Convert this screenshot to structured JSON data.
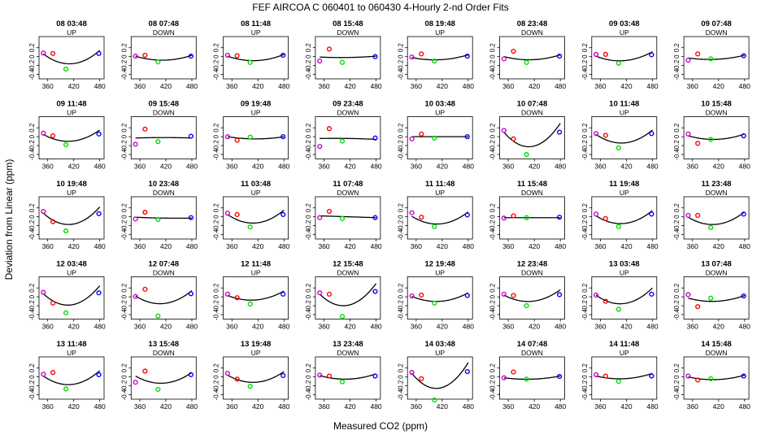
{
  "title": "FEF   AIRCOA C   060401 to 060430   4-Hourly 2-nd Order Fits",
  "xlabel": "Measured CO2 (ppm)",
  "ylabel": "Deviation from Linear (ppm)",
  "colors": {
    "curve": "#000000",
    "point_purple": "#cc00cc",
    "point_red": "#ff0000",
    "point_green": "#00dd00",
    "point_blue": "#0000ff"
  },
  "chart_data": {
    "type": "scatter",
    "layout": {
      "rows": 5,
      "cols": 8
    },
    "xlim": [
      340,
      490
    ],
    "ylim": [
      -0.5,
      0.45
    ],
    "xticks": [
      360,
      420,
      480
    ],
    "yticks": [
      -0.4,
      -0.2,
      0,
      0.2
    ],
    "point_x": [
      350,
      372,
      402,
      478
    ],
    "point_colors": [
      "#cc00cc",
      "#ff0000",
      "#00dd00",
      "#0000ff"
    ],
    "panels": [
      {
        "title": "08 03:48",
        "mode": "UP",
        "fit": [
          0.1,
          -0.26,
          0.04
        ],
        "points": [
          0.08,
          0.07,
          -0.28,
          0.07
        ]
      },
      {
        "title": "08 07:48",
        "mode": "DOWN",
        "fit": [
          0.02,
          -0.1,
          0.01
        ],
        "points": [
          0.01,
          0.03,
          -0.12,
          0.01
        ]
      },
      {
        "title": "08 11:48",
        "mode": "UP",
        "fit": [
          0.03,
          -0.12,
          0.02
        ],
        "points": [
          0.03,
          0.02,
          -0.13,
          0.03
        ]
      },
      {
        "title": "08 15:48",
        "mode": "DOWN",
        "fit": [
          0.0,
          -0.02,
          0.01
        ],
        "points": [
          -0.1,
          0.17,
          -0.13,
          0.0
        ]
      },
      {
        "title": "08 19:48",
        "mode": "UP",
        "fit": [
          0.01,
          -0.08,
          0.03
        ],
        "points": [
          -0.01,
          0.06,
          -0.1,
          0.01
        ]
      },
      {
        "title": "08 23:48",
        "mode": "DOWN",
        "fit": [
          0.02,
          -0.09,
          0.02
        ],
        "points": [
          -0.05,
          0.12,
          -0.13,
          0.01
        ]
      },
      {
        "title": "09 03:48",
        "mode": "UP",
        "fit": [
          0.06,
          -0.15,
          0.05
        ],
        "points": [
          0.05,
          0.05,
          -0.15,
          0.04
        ]
      },
      {
        "title": "09 07:48",
        "mode": "DOWN",
        "fit": [
          0.0,
          -0.06,
          0.03
        ],
        "points": [
          -0.08,
          0.06,
          -0.05,
          0.02
        ]
      },
      {
        "title": "09 11:48",
        "mode": "UP",
        "fit": [
          0.1,
          -0.2,
          0.05
        ],
        "points": [
          0.08,
          0.02,
          -0.18,
          0.06
        ]
      },
      {
        "title": "09 15:48",
        "mode": "DOWN",
        "fit": [
          -0.03,
          0.01,
          0.0
        ],
        "points": [
          -0.17,
          0.17,
          -0.11,
          0.01
        ]
      },
      {
        "title": "09 19:48",
        "mode": "UP",
        "fit": [
          0.0,
          -0.05,
          0.0
        ],
        "points": [
          0.0,
          -0.08,
          -0.01,
          0.0
        ]
      },
      {
        "title": "09 23:48",
        "mode": "DOWN",
        "fit": [
          -0.05,
          0.01,
          -0.01
        ],
        "points": [
          -0.22,
          0.18,
          -0.1,
          -0.03
        ]
      },
      {
        "title": "10 03:48",
        "mode": "UP",
        "fit": [
          0.0,
          0.0,
          0.0
        ],
        "points": [
          -0.05,
          0.06,
          -0.03,
          0.0
        ]
      },
      {
        "title": "10 07:48",
        "mode": "DOWN",
        "fit": [
          0.2,
          -0.42,
          0.1
        ],
        "points": [
          0.14,
          -0.05,
          -0.4,
          0.1
        ]
      },
      {
        "title": "10 11:48",
        "mode": "UP",
        "fit": [
          0.1,
          -0.24,
          0.05
        ],
        "points": [
          0.07,
          0.03,
          -0.25,
          0.07
        ]
      },
      {
        "title": "10 15:48",
        "mode": "DOWN",
        "fit": [
          0.04,
          -0.1,
          0.02
        ],
        "points": [
          0.06,
          -0.15,
          -0.06,
          0.02
        ]
      },
      {
        "title": "10 19:48",
        "mode": "UP",
        "fit": [
          0.15,
          -0.32,
          0.07
        ],
        "points": [
          0.12,
          -0.11,
          -0.32,
          0.07
        ]
      },
      {
        "title": "10 23:48",
        "mode": "DOWN",
        "fit": [
          -0.02,
          -0.01,
          -0.01
        ],
        "points": [
          -0.05,
          0.1,
          -0.06,
          -0.02
        ]
      },
      {
        "title": "11 03:48",
        "mode": "UP",
        "fit": [
          0.1,
          -0.24,
          0.05
        ],
        "points": [
          0.08,
          0.05,
          -0.23,
          0.05
        ]
      },
      {
        "title": "11 07:48",
        "mode": "DOWN",
        "fit": [
          0.0,
          0.0,
          -0.02
        ],
        "points": [
          -0.02,
          0.12,
          -0.04,
          -0.02
        ]
      },
      {
        "title": "11 11:48",
        "mode": "UP",
        "fit": [
          0.06,
          -0.22,
          0.05
        ],
        "points": [
          0.09,
          -0.01,
          -0.22,
          0.04
        ]
      },
      {
        "title": "11 15:48",
        "mode": "DOWN",
        "fit": [
          -0.02,
          0.0,
          0.0
        ],
        "points": [
          -0.03,
          0.02,
          -0.02,
          -0.01
        ]
      },
      {
        "title": "11 19:48",
        "mode": "UP",
        "fit": [
          0.08,
          -0.23,
          0.06
        ],
        "points": [
          0.06,
          -0.04,
          -0.22,
          0.06
        ]
      },
      {
        "title": "11 23:48",
        "mode": "DOWN",
        "fit": [
          0.05,
          -0.22,
          0.06
        ],
        "points": [
          0.03,
          0.03,
          -0.24,
          0.06
        ]
      },
      {
        "title": "12 03:48",
        "mode": "UP",
        "fit": [
          0.16,
          -0.34,
          0.09
        ],
        "points": [
          0.1,
          -0.14,
          -0.36,
          0.09
        ]
      },
      {
        "title": "12 07:48",
        "mode": "DOWN",
        "fit": [
          0.08,
          -0.23,
          0.06
        ],
        "points": [
          0.01,
          0.17,
          -0.43,
          0.07
        ]
      },
      {
        "title": "12 11:48",
        "mode": "UP",
        "fit": [
          0.08,
          -0.15,
          0.05
        ],
        "points": [
          0.06,
          -0.02,
          -0.16,
          0.06
        ]
      },
      {
        "title": "12 15:48",
        "mode": "DOWN",
        "fit": [
          0.18,
          -0.37,
          0.12
        ],
        "points": [
          0.09,
          0.06,
          -0.44,
          0.12
        ]
      },
      {
        "title": "12 19:48",
        "mode": "UP",
        "fit": [
          0.05,
          -0.15,
          0.04
        ],
        "points": [
          0.02,
          0.04,
          -0.14,
          0.03
        ]
      },
      {
        "title": "12 23:48",
        "mode": "DOWN",
        "fit": [
          0.1,
          -0.2,
          0.06
        ],
        "points": [
          0.06,
          0.03,
          -0.2,
          0.05
        ]
      },
      {
        "title": "13 03:48",
        "mode": "UP",
        "fit": [
          0.12,
          -0.27,
          0.08
        ],
        "points": [
          0.04,
          -0.1,
          -0.28,
          0.06
        ]
      },
      {
        "title": "13 07:48",
        "mode": "DOWN",
        "fit": [
          0.0,
          -0.1,
          0.03
        ],
        "points": [
          0.05,
          -0.22,
          -0.03,
          0.02
        ]
      },
      {
        "title": "13 11:48",
        "mode": "UP",
        "fit": [
          0.08,
          -0.25,
          0.06
        ],
        "points": [
          0.06,
          0.1,
          -0.27,
          0.05
        ]
      },
      {
        "title": "13 15:48",
        "mode": "DOWN",
        "fit": [
          0.06,
          -0.2,
          0.04
        ],
        "points": [
          -0.12,
          0.13,
          -0.28,
          0.05
        ]
      },
      {
        "title": "13 19:48",
        "mode": "UP",
        "fit": [
          0.08,
          -0.2,
          0.04
        ],
        "points": [
          0.08,
          -0.05,
          -0.21,
          0.03
        ]
      },
      {
        "title": "13 23:48",
        "mode": "DOWN",
        "fit": [
          0.05,
          -0.1,
          0.02
        ],
        "points": [
          0.04,
          0.02,
          -0.11,
          0.02
        ]
      },
      {
        "title": "14 03:48",
        "mode": "UP",
        "fit": [
          0.2,
          -0.45,
          0.12
        ],
        "points": [
          0.1,
          -0.04,
          -0.52,
          0.12
        ]
      },
      {
        "title": "14 07:48",
        "mode": "DOWN",
        "fit": [
          0.0,
          -0.05,
          0.02
        ],
        "points": [
          -0.02,
          0.11,
          -0.05,
          0.01
        ]
      },
      {
        "title": "14 11:48",
        "mode": "UP",
        "fit": [
          0.05,
          -0.09,
          0.03
        ],
        "points": [
          0.05,
          0.02,
          -0.1,
          0.02
        ]
      },
      {
        "title": "14 15:48",
        "mode": "DOWN",
        "fit": [
          0.02,
          -0.08,
          0.02
        ],
        "points": [
          0.02,
          -0.07,
          -0.04,
          0.02
        ]
      }
    ]
  }
}
